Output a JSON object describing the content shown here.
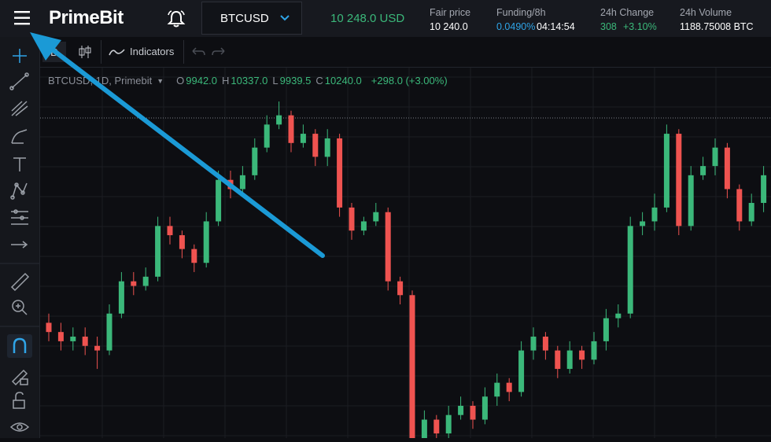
{
  "header": {
    "logo": "PrimeBit",
    "symbol": "BTCUSD",
    "last_price": "10 248.0 USD",
    "stats": [
      {
        "label": "Fair price",
        "value": "10 240.0"
      },
      {
        "label": "Funding/8h",
        "value": "0.0490%",
        "extra": "04:14:54"
      },
      {
        "label": "24h Change",
        "value": "308",
        "extra": "+3.10%"
      },
      {
        "label": "24h Volume",
        "value": "1188.75008 BTC"
      }
    ]
  },
  "toolbar": {
    "interval": "D",
    "indicators": "Indicators"
  },
  "legend": {
    "title": "BTCUSD, 1D, Primebit",
    "items": [
      {
        "label": "O",
        "value": "9942.0"
      },
      {
        "label": "H",
        "value": "10337.0"
      },
      {
        "label": "L",
        "value": "9939.5"
      },
      {
        "label": "C",
        "value": "10240.0"
      }
    ],
    "change": "+298.0 (+3.00%)"
  },
  "chart_data": {
    "type": "candlestick",
    "ylim": [
      7000,
      11000
    ],
    "up_color": "#3bb87a",
    "down_color": "#ef5350",
    "open": [
      8250,
      8150,
      8050,
      8100,
      8000,
      7950,
      8350,
      8700,
      8650,
      8750,
      9300,
      9200,
      9050,
      8900,
      9350,
      9800,
      9700,
      9850,
      10150,
      10400,
      10500,
      10200,
      10300,
      10050,
      10250,
      9500,
      9250,
      9350,
      9450,
      8700,
      8550,
      6900,
      7200,
      7050,
      7250,
      7350,
      7200,
      7450,
      7600,
      7500,
      7950,
      8100,
      7950,
      7750,
      7950,
      7850,
      8050,
      8300,
      8350,
      9300,
      9350,
      9500,
      10300,
      9300,
      9850,
      9950,
      10150,
      9700,
      9350,
      9550
    ],
    "high": [
      8350,
      8250,
      8200,
      8200,
      8100,
      8450,
      8800,
      8800,
      8850,
      9400,
      9400,
      9250,
      9100,
      9450,
      9900,
      9900,
      9950,
      10250,
      10500,
      10650,
      10550,
      10400,
      10350,
      10350,
      10300,
      9550,
      9400,
      9550,
      9500,
      8750,
      8600,
      7300,
      7250,
      7350,
      7450,
      7400,
      7550,
      7700,
      7650,
      8050,
      8200,
      8150,
      8000,
      8050,
      8000,
      8150,
      8400,
      8450,
      9400,
      9450,
      9650,
      10400,
      10350,
      9950,
      10050,
      10250,
      10200,
      9750,
      9650,
      9950
    ],
    "low": [
      8050,
      7950,
      7950,
      7900,
      7750,
      7900,
      8300,
      8550,
      8600,
      8700,
      9100,
      8950,
      8800,
      8850,
      9300,
      9600,
      9650,
      9800,
      10100,
      10350,
      10100,
      10150,
      9950,
      9950,
      9400,
      9150,
      9200,
      9300,
      8600,
      8450,
      6800,
      6850,
      6950,
      7000,
      7200,
      7100,
      7150,
      7350,
      7400,
      7450,
      7850,
      7850,
      7650,
      7700,
      7750,
      7800,
      7950,
      8200,
      8300,
      9200,
      9250,
      9450,
      9200,
      9250,
      9800,
      9850,
      9600,
      9250,
      9300,
      9450
    ],
    "close": [
      8150,
      8050,
      8100,
      8000,
      7950,
      8350,
      8700,
      8650,
      8750,
      9300,
      9200,
      9050,
      8900,
      9350,
      9800,
      9700,
      9850,
      10150,
      10400,
      10500,
      10200,
      10300,
      10050,
      10250,
      9500,
      9250,
      9350,
      9450,
      8700,
      8550,
      6900,
      7200,
      7050,
      7250,
      7350,
      7200,
      7450,
      7600,
      7500,
      7950,
      8100,
      7950,
      7750,
      7950,
      7850,
      8050,
      8300,
      8350,
      9300,
      9350,
      9500,
      10300,
      9300,
      9850,
      9950,
      10150,
      9700,
      9350,
      9550,
      9850
    ]
  }
}
